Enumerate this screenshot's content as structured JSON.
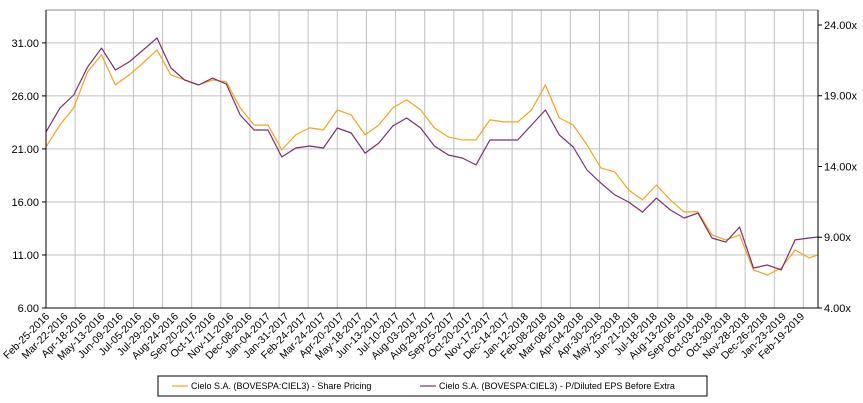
{
  "chart_data": {
    "type": "line",
    "title": "",
    "xlabel": "",
    "ylabel_left": "",
    "ylabel_right": "",
    "x_unit": "days since Feb-25-2016",
    "xlim": [
      0,
      1113
    ],
    "ylim_left": [
      6,
      34.1
    ],
    "ylim_right": [
      4,
      25.06
    ],
    "grid": true,
    "grid_x_step_days": 42,
    "legend_position": "bottom-center",
    "left_ticks": [
      "6.00",
      "11.00",
      "16.00",
      "21.00",
      "26.00",
      "31.00"
    ],
    "left_tick_values": [
      6,
      11,
      16,
      21,
      26,
      31
    ],
    "right_ticks": [
      "4.00x",
      "9.00x",
      "14.00x",
      "19.00x",
      "24.00x"
    ],
    "right_tick_values": [
      4,
      9,
      14,
      19,
      24
    ],
    "x_labels": [
      "Feb-25-2016",
      "Mar-22-2016",
      "Apr-18-2016",
      "May-13-2016",
      "Jun-09-2016",
      "Jul-05-2016",
      "Jul-29-2016",
      "Aug-24-2016",
      "Sep-20-2016",
      "Oct-17-2016",
      "Nov-11-2016",
      "Dec-08-2016",
      "Jan-04-2017",
      "Jan-31-2017",
      "Feb-24-2017",
      "Mar-24-2017",
      "Apr-20-2017",
      "May-18-2017",
      "Jun-13-2017",
      "Jul-10-2017",
      "Aug-03-2017",
      "Aug-29-2017",
      "Sep-25-2017",
      "Oct-20-2017",
      "Nov-17-2017",
      "Dec-14-2017",
      "Jan-12-2018",
      "Feb-08-2018",
      "Mar-08-2018",
      "Apr-04-2018",
      "Apr-30-2018",
      "May-25-2018",
      "Jun-21-2018",
      "Jul-18-2018",
      "Aug-13-2018",
      "Sep-06-2018",
      "Oct-03-2018",
      "Oct-30-2018",
      "Nov-28-2018",
      "Dec-26-2018",
      "Jan-23-2019",
      "Feb-19-2019"
    ],
    "x": [
      0,
      20,
      40,
      60,
      80,
      100,
      120,
      140,
      160,
      180,
      200,
      220,
      240,
      260,
      280,
      300,
      320,
      340,
      360,
      380,
      400,
      420,
      440,
      460,
      480,
      500,
      520,
      540,
      560,
      580,
      600,
      620,
      640,
      660,
      680,
      700,
      720,
      740,
      760,
      780,
      800,
      820,
      840,
      860,
      880,
      900,
      920,
      940,
      960,
      980,
      1000,
      1020,
      1040,
      1060,
      1080,
      1100,
      1113
    ],
    "series": [
      {
        "name": "Cielo S.A. (BOVESPA:CIEL3) - Share Pricing",
        "axis": "left",
        "color": "#F7A21B",
        "values": [
          21.19,
          23.26,
          24.87,
          28.26,
          29.87,
          27.04,
          27.98,
          29.11,
          30.34,
          27.98,
          27.51,
          27.04,
          27.51,
          27.32,
          24.87,
          23.26,
          23.26,
          20.91,
          22.32,
          22.98,
          22.79,
          24.68,
          24.21,
          22.32,
          23.26,
          24.87,
          25.62,
          24.68,
          22.98,
          22.13,
          21.85,
          21.85,
          23.74,
          23.55,
          23.55,
          24.68,
          27.04,
          23.92,
          23.26,
          21.38,
          19.21,
          18.83,
          17.13,
          16.19,
          17.6,
          16.19,
          15.06,
          15.06,
          12.89,
          12.42,
          12.89,
          9.58,
          9.11,
          9.77,
          11.47,
          10.72,
          11.0
        ]
      },
      {
        "name": "Cielo S.A. (BOVESPA:CIEL3) - P/Diluted EPS Before Extra",
        "axis": "right",
        "color": "#7E2F6E",
        "values": [
          16.44,
          18.13,
          19.05,
          21.03,
          22.37,
          20.82,
          21.39,
          22.23,
          23.08,
          20.96,
          20.11,
          19.76,
          20.25,
          19.83,
          17.64,
          16.58,
          16.58,
          14.67,
          15.31,
          15.45,
          15.31,
          16.72,
          16.37,
          14.95,
          15.66,
          16.86,
          17.43,
          16.72,
          15.45,
          14.81,
          14.6,
          14.11,
          15.87,
          15.87,
          15.87,
          16.93,
          17.99,
          16.23,
          15.38,
          13.75,
          12.83,
          11.99,
          11.49,
          10.78,
          11.77,
          10.93,
          10.36,
          10.71,
          8.95,
          8.66,
          9.72,
          6.83,
          7.04,
          6.69,
          8.81,
          8.95,
          9.02
        ]
      }
    ]
  }
}
